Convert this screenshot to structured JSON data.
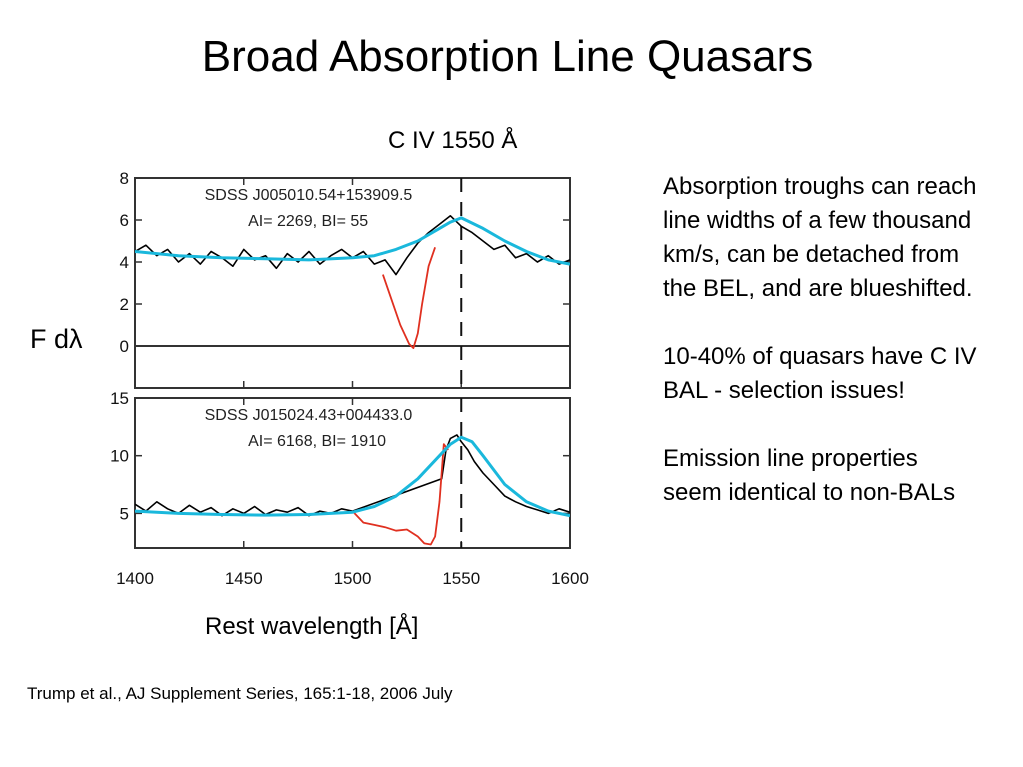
{
  "slide": {
    "title": "Broad Absorption Line Quasars",
    "citation": "Trump et al., AJ Supplement Series, 165:1-18, 2006 July"
  },
  "notes": [
    "Absorption troughs can reach line widths of a few thousand km/s, can be detached from the BEL, and are blueshifted.",
    "10-40% of quasars have C IV BAL - selection issues!",
    "Emission line properties seem identical to non-BALs"
  ],
  "chart_data": {
    "type": "line",
    "xlabel": "Rest wavelength [Å]",
    "ylabel": "F dλ",
    "xlim": [
      1400,
      1600
    ],
    "x_ticks": [
      1400,
      1450,
      1500,
      1550,
      1600
    ],
    "marker": {
      "x": 1550,
      "label": "C IV 1550 Å",
      "style": "dashed"
    },
    "colors": {
      "observed": "#000000",
      "absorption": "#e03020",
      "continuum": "#1ab8dc",
      "axes": "#333333"
    },
    "panels": [
      {
        "name": "SDSS J005010.54+153909.5",
        "annotation": "AI= 2269, BI= 55",
        "ylim": [
          -2,
          8
        ],
        "y_ticks": [
          0,
          2,
          4,
          6,
          8
        ],
        "zero_line": true,
        "continuum": {
          "x": [
            1400,
            1420,
            1440,
            1460,
            1480,
            1500,
            1510,
            1520,
            1530,
            1540,
            1545,
            1550,
            1560,
            1570,
            1580,
            1590,
            1600
          ],
          "y": [
            4.5,
            4.3,
            4.2,
            4.15,
            4.1,
            4.2,
            4.3,
            4.6,
            5.0,
            5.6,
            5.9,
            6.1,
            5.6,
            5.0,
            4.5,
            4.1,
            3.9
          ]
        },
        "spectrum": {
          "x": [
            1400,
            1405,
            1410,
            1415,
            1420,
            1425,
            1430,
            1435,
            1440,
            1445,
            1450,
            1455,
            1460,
            1465,
            1470,
            1475,
            1480,
            1485,
            1490,
            1495,
            1500,
            1505,
            1510,
            1515,
            1520,
            1525,
            1530,
            1535,
            1540,
            1545,
            1550,
            1555,
            1560,
            1565,
            1570,
            1575,
            1580,
            1585,
            1590,
            1595,
            1600
          ],
          "y": [
            4.5,
            4.8,
            4.3,
            4.6,
            4.0,
            4.4,
            3.9,
            4.5,
            4.2,
            3.8,
            4.6,
            4.1,
            4.3,
            3.7,
            4.4,
            4.0,
            4.5,
            3.9,
            4.3,
            4.6,
            4.2,
            4.5,
            3.9,
            4.1,
            3.4,
            4.2,
            4.9,
            5.4,
            5.8,
            6.2,
            5.7,
            5.4,
            5.0,
            4.6,
            4.8,
            4.2,
            4.4,
            4.0,
            4.3,
            3.9,
            4.1
          ]
        },
        "absorption": {
          "x": [
            1514,
            1518,
            1522,
            1526,
            1528,
            1530,
            1532,
            1535,
            1538
          ],
          "y": [
            3.4,
            2.2,
            1.0,
            0.1,
            -0.1,
            0.6,
            2.0,
            3.8,
            4.7
          ]
        }
      },
      {
        "name": "SDSS J015024.43+004433.0",
        "annotation": "AI= 6168, BI= 1910",
        "ylim": [
          2,
          15
        ],
        "y_ticks": [
          5,
          10,
          15
        ],
        "zero_line": false,
        "continuum": {
          "x": [
            1400,
            1420,
            1440,
            1460,
            1480,
            1500,
            1510,
            1520,
            1530,
            1540,
            1545,
            1550,
            1555,
            1560,
            1570,
            1580,
            1590,
            1600
          ],
          "y": [
            5.2,
            5.0,
            4.9,
            4.85,
            4.9,
            5.1,
            5.6,
            6.5,
            8.0,
            10.0,
            11.0,
            11.6,
            11.2,
            10.0,
            7.5,
            6.0,
            5.2,
            4.8
          ]
        },
        "spectrum": {
          "x": [
            1400,
            1405,
            1410,
            1415,
            1420,
            1425,
            1430,
            1435,
            1440,
            1445,
            1450,
            1455,
            1460,
            1465,
            1470,
            1475,
            1480,
            1485,
            1490,
            1495,
            1500,
            1541,
            1543,
            1545,
            1548,
            1550,
            1553,
            1556,
            1560,
            1565,
            1570,
            1575,
            1580,
            1585,
            1590,
            1595,
            1600
          ],
          "y": [
            5.8,
            5.2,
            6.0,
            5.4,
            5.0,
            5.7,
            5.1,
            5.5,
            4.8,
            5.4,
            5.0,
            5.6,
            4.9,
            5.3,
            5.1,
            5.5,
            4.8,
            5.2,
            5.0,
            5.4,
            5.2,
            8.0,
            10.5,
            11.5,
            11.8,
            11.2,
            10.5,
            9.5,
            8.5,
            7.5,
            6.5,
            6.0,
            5.6,
            5.3,
            5.0,
            5.4,
            5.1
          ]
        },
        "absorption": {
          "x": [
            1500,
            1505,
            1510,
            1515,
            1520,
            1525,
            1530,
            1533,
            1536,
            1538,
            1540,
            1542,
            1544
          ],
          "y": [
            5.2,
            4.2,
            4.0,
            3.8,
            3.5,
            3.6,
            3.0,
            2.4,
            2.3,
            3.0,
            6.0,
            11.0,
            10.5
          ]
        }
      }
    ]
  }
}
